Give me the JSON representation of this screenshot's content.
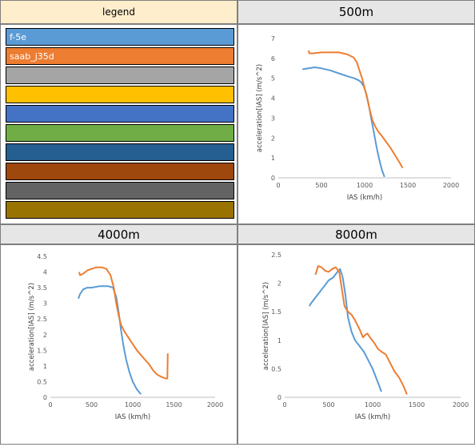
{
  "legend": {
    "header": "legend",
    "rows": [
      {
        "label": "f-5e",
        "color": "#5b9bd5"
      },
      {
        "label": "saab_j35d",
        "color": "#ed7d31"
      },
      {
        "label": "",
        "color": "#a5a5a5"
      },
      {
        "label": "",
        "color": "#ffc000"
      },
      {
        "label": "",
        "color": "#4472c4"
      },
      {
        "label": "",
        "color": "#70ad47"
      },
      {
        "label": "",
        "color": "#255e91"
      },
      {
        "label": "",
        "color": "#9e480e"
      },
      {
        "label": "",
        "color": "#636363"
      },
      {
        "label": "",
        "color": "#997300"
      }
    ]
  },
  "chart_data": [
    {
      "type": "line",
      "title": "500m",
      "xlabel": "IAS (km/h)",
      "ylabel": "acceleration[IAS] (m/s^2)",
      "xlim": [
        0,
        2000
      ],
      "ylim": [
        0,
        7
      ],
      "xticks": [
        0,
        500,
        1000,
        1500,
        2000
      ],
      "yticks": [
        0,
        1,
        2,
        3,
        4,
        5,
        6,
        7
      ],
      "grid": false,
      "series": [
        {
          "name": "f-5e",
          "color": "#5b9bd5",
          "points": [
            [
              280,
              5.45
            ],
            [
              350,
              5.5
            ],
            [
              420,
              5.55
            ],
            [
              500,
              5.5
            ],
            [
              600,
              5.4
            ],
            [
              700,
              5.25
            ],
            [
              800,
              5.1
            ],
            [
              880,
              5.0
            ],
            [
              930,
              4.9
            ],
            [
              960,
              4.8
            ],
            [
              990,
              4.6
            ],
            [
              1020,
              4.2
            ],
            [
              1050,
              3.6
            ],
            [
              1080,
              2.9
            ],
            [
              1110,
              2.2
            ],
            [
              1140,
              1.5
            ],
            [
              1170,
              0.9
            ],
            [
              1200,
              0.4
            ],
            [
              1230,
              0.05
            ]
          ]
        },
        {
          "name": "saab_j35d",
          "color": "#ed7d31",
          "points": [
            [
              350,
              6.4
            ],
            [
              360,
              6.25
            ],
            [
              400,
              6.25
            ],
            [
              500,
              6.3
            ],
            [
              600,
              6.3
            ],
            [
              700,
              6.3
            ],
            [
              800,
              6.2
            ],
            [
              870,
              6.05
            ],
            [
              910,
              5.8
            ],
            [
              940,
              5.4
            ],
            [
              970,
              5.0
            ],
            [
              1000,
              4.5
            ],
            [
              1030,
              4.0
            ],
            [
              1060,
              3.4
            ],
            [
              1090,
              2.9
            ],
            [
              1120,
              2.6
            ],
            [
              1160,
              2.3
            ],
            [
              1200,
              2.1
            ],
            [
              1250,
              1.8
            ],
            [
              1300,
              1.5
            ],
            [
              1350,
              1.15
            ],
            [
              1400,
              0.8
            ],
            [
              1440,
              0.5
            ]
          ]
        }
      ]
    },
    {
      "type": "line",
      "title": "4000m",
      "xlabel": "IAS (km/h)",
      "ylabel": "acceleration[IAS] (m/s^2)",
      "xlim": [
        0,
        2000
      ],
      "ylim": [
        0,
        4.5
      ],
      "xticks": [
        0,
        500,
        1000,
        1500,
        2000
      ],
      "yticks": [
        0,
        0.5,
        1,
        1.5,
        2,
        2.5,
        3,
        3.5,
        4,
        4.5
      ],
      "grid": false,
      "series": [
        {
          "name": "f-5e",
          "color": "#5b9bd5",
          "points": [
            [
              340,
              3.15
            ],
            [
              360,
              3.3
            ],
            [
              400,
              3.45
            ],
            [
              450,
              3.5
            ],
            [
              500,
              3.5
            ],
            [
              600,
              3.55
            ],
            [
              700,
              3.55
            ],
            [
              760,
              3.5
            ],
            [
              800,
              3.2
            ],
            [
              830,
              2.7
            ],
            [
              860,
              2.1
            ],
            [
              890,
              1.6
            ],
            [
              920,
              1.2
            ],
            [
              960,
              0.8
            ],
            [
              1000,
              0.5
            ],
            [
              1050,
              0.25
            ],
            [
              1100,
              0.1
            ]
          ]
        },
        {
          "name": "saab_j35d",
          "color": "#ed7d31",
          "points": [
            [
              350,
              4.0
            ],
            [
              360,
              3.9
            ],
            [
              400,
              3.95
            ],
            [
              450,
              4.05
            ],
            [
              500,
              4.1
            ],
            [
              560,
              4.15
            ],
            [
              620,
              4.15
            ],
            [
              680,
              4.1
            ],
            [
              730,
              3.9
            ],
            [
              770,
              3.5
            ],
            [
              800,
              3.0
            ],
            [
              830,
              2.6
            ],
            [
              860,
              2.3
            ],
            [
              900,
              2.1
            ],
            [
              950,
              1.9
            ],
            [
              1000,
              1.7
            ],
            [
              1050,
              1.5
            ],
            [
              1100,
              1.35
            ],
            [
              1150,
              1.2
            ],
            [
              1200,
              1.05
            ],
            [
              1250,
              0.85
            ],
            [
              1300,
              0.72
            ],
            [
              1350,
              0.65
            ],
            [
              1400,
              0.6
            ],
            [
              1420,
              0.6
            ],
            [
              1425,
              1.4
            ]
          ]
        }
      ]
    },
    {
      "type": "line",
      "title": "8000m",
      "xlabel": "IAS (km/h)",
      "ylabel": "acceleration[IAS] (m/s^2)",
      "xlim": [
        0,
        2000
      ],
      "ylim": [
        0,
        2.5
      ],
      "xticks": [
        0,
        500,
        1000,
        1500,
        2000
      ],
      "yticks": [
        0,
        0.5,
        1,
        1.5,
        2,
        2.5
      ],
      "grid": false,
      "series": [
        {
          "name": "f-5e",
          "color": "#5b9bd5",
          "points": [
            [
              280,
              1.6
            ],
            [
              300,
              1.65
            ],
            [
              350,
              1.75
            ],
            [
              400,
              1.85
            ],
            [
              450,
              1.95
            ],
            [
              500,
              2.05
            ],
            [
              550,
              2.1
            ],
            [
              600,
              2.2
            ],
            [
              630,
              2.25
            ],
            [
              660,
              2.1
            ],
            [
              690,
              1.8
            ],
            [
              720,
              1.4
            ],
            [
              760,
              1.15
            ],
            [
              800,
              1.0
            ],
            [
              850,
              0.9
            ],
            [
              900,
              0.8
            ],
            [
              950,
              0.65
            ],
            [
              1000,
              0.5
            ],
            [
              1050,
              0.3
            ],
            [
              1100,
              0.1
            ]
          ]
        },
        {
          "name": "saab_j35d",
          "color": "#ed7d31",
          "points": [
            [
              350,
              2.15
            ],
            [
              380,
              2.3
            ],
            [
              420,
              2.28
            ],
            [
              460,
              2.22
            ],
            [
              500,
              2.2
            ],
            [
              540,
              2.25
            ],
            [
              580,
              2.28
            ],
            [
              620,
              2.2
            ],
            [
              650,
              1.9
            ],
            [
              680,
              1.6
            ],
            [
              720,
              1.5
            ],
            [
              760,
              1.45
            ],
            [
              800,
              1.35
            ],
            [
              850,
              1.2
            ],
            [
              890,
              1.05
            ],
            [
              920,
              1.1
            ],
            [
              940,
              1.12
            ],
            [
              970,
              1.05
            ],
            [
              1020,
              0.95
            ],
            [
              1060,
              0.85
            ],
            [
              1100,
              0.8
            ],
            [
              1150,
              0.75
            ],
            [
              1200,
              0.6
            ],
            [
              1250,
              0.45
            ],
            [
              1300,
              0.35
            ],
            [
              1350,
              0.2
            ],
            [
              1390,
              0.05
            ]
          ]
        }
      ]
    }
  ]
}
